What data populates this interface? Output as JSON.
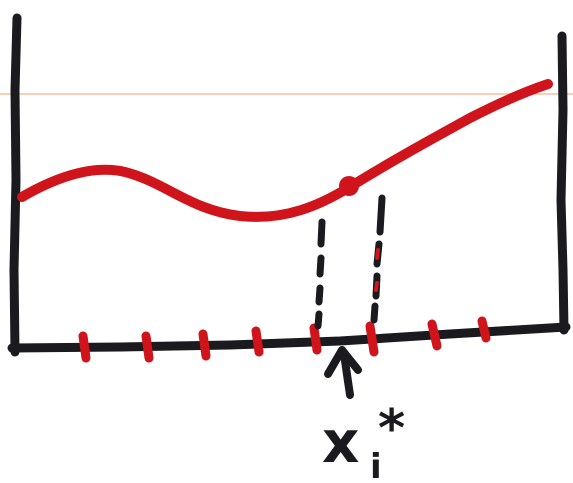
{
  "diagram": {
    "label": {
      "base": "x",
      "superscript": "*",
      "subscript": "i"
    },
    "colors": {
      "ink": "#1b1b1f",
      "curve": "#d0141b",
      "guide_line": "#f2b48a",
      "background": "#ffffff"
    }
  }
}
